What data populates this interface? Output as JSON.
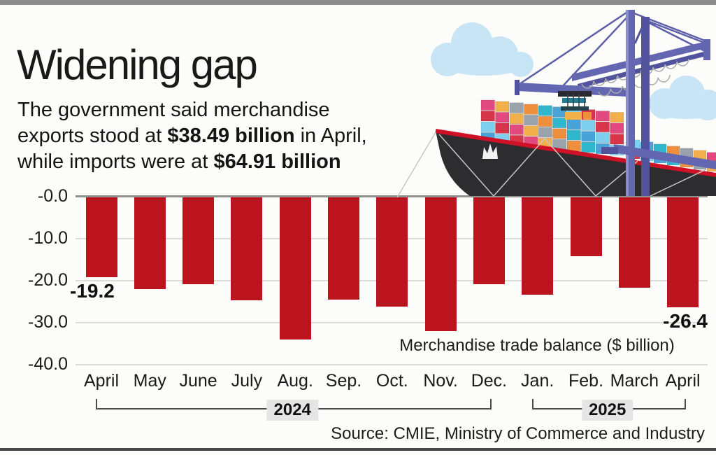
{
  "page": {
    "background": "#fcfcfa",
    "top_band_color": "#8d8d8d",
    "bottom_rule_color": "#474747"
  },
  "header": {
    "title": "Widening gap",
    "intro": {
      "line1": "The government said merchandise",
      "line2_pre": "exports stood at ",
      "line2_bold": "$38.49 billion",
      "line2_post": " in April,",
      "line3_pre": "while imports were at ",
      "line3_bold": "$64.91 billion"
    }
  },
  "chart_data": {
    "type": "bar",
    "title": "Merchandise trade balance ($ billion)",
    "series_label": "Merchandise trade balance ($ billion)",
    "categories": [
      "April",
      "May",
      "June",
      "July",
      "Aug.",
      "Sep.",
      "Oct.",
      "Nov.",
      "Dec.",
      "Jan.",
      "Feb.",
      "March",
      "April"
    ],
    "values": [
      -19.2,
      -22.0,
      -20.8,
      -24.7,
      -34.0,
      -24.5,
      -26.1,
      -32.0,
      -20.9,
      -23.3,
      -14.2,
      -21.6,
      -26.4
    ],
    "bar_color": "#bc141f",
    "ylim": [
      -40,
      0
    ],
    "grid": true,
    "yticks": [
      {
        "label": "-0.0",
        "value": 0
      },
      {
        "label": "-10.0",
        "value": -10
      },
      {
        "label": "-20.0",
        "value": -20
      },
      {
        "label": "-30.0",
        "value": -30
      },
      {
        "label": "-40.0",
        "value": -40
      }
    ],
    "annotations": [
      {
        "index": 0,
        "text": "-19.2",
        "align": "left"
      },
      {
        "index": 12,
        "text": "-26.4",
        "align": "right"
      }
    ],
    "year_groups": [
      {
        "label": "2024",
        "from": 0,
        "to": 8
      },
      {
        "label": "2025",
        "from": 9,
        "to": 12
      }
    ]
  },
  "footer": {
    "source": "Source: CMIE, Ministry of Commerce and Industry"
  },
  "illustration": {
    "parts": [
      "cloud-icon",
      "gantry-crane-icon",
      "container-ship-icon",
      "crown-logo-icon"
    ],
    "cloud_color": "#c8e5f5",
    "crane_color": "#6366b0",
    "crane_dark": "#51549c",
    "crane_light": "#8a8dcb",
    "hull_color": "#2d2d30",
    "hull_stripe_color": "#ce1126",
    "rigging_color": "#c6c6c6",
    "container_colors": [
      "#e2497f",
      "#ee8f3e",
      "#7fd0ee",
      "#f2b04c",
      "#31b7cd",
      "#d6354a",
      "#9aa2ab",
      "#4aa3d8"
    ]
  }
}
